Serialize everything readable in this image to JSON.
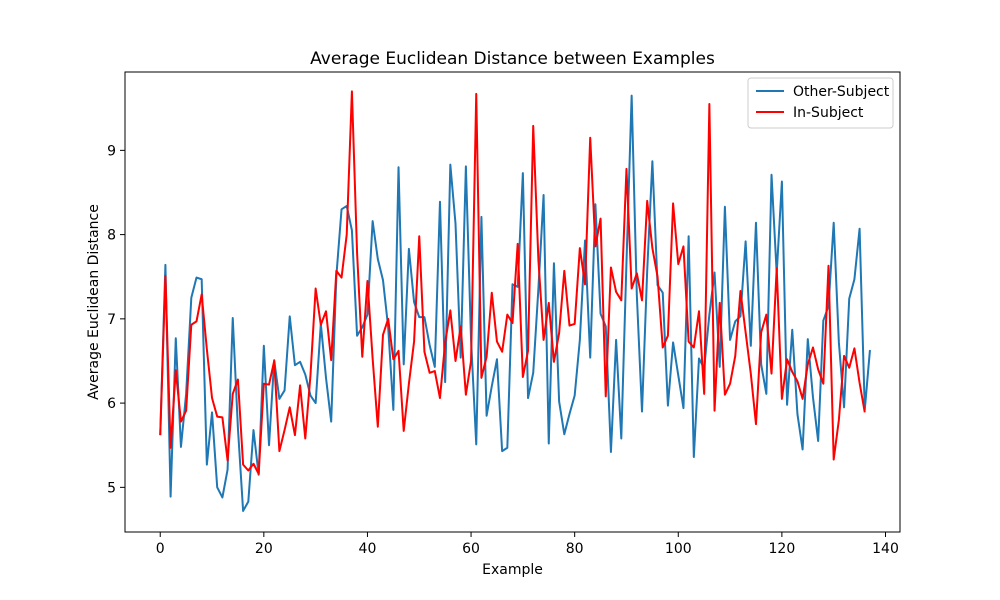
{
  "chart_data": {
    "type": "line",
    "title": "Average Euclidean Distance between Examples",
    "xlabel": "Example",
    "ylabel": "Average Euclidean Distance",
    "xlim": [
      -6.8,
      142.8
    ],
    "ylim": [
      4.47,
      9.93
    ],
    "xticks": [
      0,
      20,
      40,
      60,
      80,
      100,
      120,
      140
    ],
    "yticks": [
      5,
      6,
      7,
      8,
      9
    ],
    "grid": false,
    "legend_position": "top-right",
    "series": [
      {
        "name": "Other-Subject",
        "color": "#1f77b4",
        "values": [
          5.62,
          7.64,
          4.89,
          6.77,
          5.48,
          6.11,
          7.25,
          7.49,
          7.47,
          5.27,
          5.89,
          5.0,
          4.88,
          5.21,
          7.01,
          5.7,
          4.72,
          4.83,
          5.68,
          5.15,
          6.68,
          5.5,
          6.51,
          6.05,
          6.15,
          7.03,
          6.45,
          6.49,
          6.34,
          6.09,
          6.0,
          6.94,
          6.3,
          5.78,
          7.51,
          8.3,
          8.34,
          8.05,
          6.8,
          6.9,
          7.05,
          8.16,
          7.71,
          7.46,
          6.9,
          5.92,
          8.8,
          6.46,
          7.83,
          7.2,
          7.02,
          7.02,
          6.69,
          6.43,
          8.39,
          6.25,
          8.83,
          8.13,
          6.54,
          8.81,
          6.75,
          5.51,
          8.21,
          5.85,
          6.2,
          6.52,
          5.43,
          5.47,
          7.41,
          7.38,
          8.73,
          6.06,
          6.36,
          7.36,
          8.47,
          5.52,
          7.66,
          6.02,
          5.63,
          5.87,
          6.09,
          6.75,
          7.93,
          6.54,
          8.36,
          7.06,
          6.91,
          5.42,
          6.75,
          5.58,
          7.67,
          9.65,
          7.28,
          5.9,
          7.57,
          8.87,
          7.4,
          7.31,
          5.97,
          6.72,
          6.33,
          5.94,
          7.98,
          5.36,
          6.53,
          6.41,
          7.05,
          7.55,
          6.43,
          8.33,
          6.75,
          6.97,
          7.03,
          7.92,
          6.68,
          8.14,
          6.46,
          6.11,
          8.71,
          7.54,
          8.63,
          5.98,
          6.87,
          5.87,
          5.45,
          6.76,
          6.07,
          5.55,
          6.98,
          7.15,
          8.14,
          6.72,
          5.95,
          7.24,
          7.47,
          8.07,
          5.92,
          6.63
        ]
      },
      {
        "name": "In-Subject",
        "color": "#ff0000",
        "values": [
          5.62,
          7.51,
          5.47,
          6.39,
          5.78,
          5.91,
          6.93,
          6.97,
          7.29,
          6.64,
          6.06,
          5.84,
          5.83,
          5.32,
          6.11,
          6.28,
          5.27,
          5.2,
          5.28,
          5.16,
          6.23,
          6.22,
          6.5,
          5.43,
          5.68,
          5.95,
          5.62,
          6.21,
          5.58,
          6.33,
          7.36,
          6.93,
          7.09,
          6.51,
          7.57,
          7.49,
          8.0,
          9.7,
          7.78,
          6.55,
          7.45,
          6.53,
          5.72,
          6.81,
          7.0,
          6.52,
          6.62,
          5.67,
          6.23,
          6.73,
          7.98,
          6.61,
          6.36,
          6.38,
          6.06,
          6.72,
          7.1,
          6.5,
          6.91,
          6.1,
          6.5,
          9.67,
          6.3,
          6.55,
          7.31,
          6.73,
          6.61,
          7.05,
          6.95,
          7.89,
          6.31,
          6.62,
          9.29,
          7.7,
          6.75,
          7.19,
          6.49,
          6.83,
          7.57,
          6.92,
          6.94,
          7.84,
          7.41,
          9.15,
          7.86,
          8.19,
          6.08,
          7.61,
          7.32,
          7.22,
          8.78,
          7.36,
          7.54,
          7.22,
          8.4,
          7.84,
          7.5,
          6.66,
          6.8,
          8.37,
          7.65,
          7.86,
          6.73,
          6.66,
          7.09,
          6.11,
          9.55,
          5.91,
          7.19,
          6.1,
          6.23,
          6.56,
          7.33,
          6.84,
          6.35,
          5.75,
          6.84,
          7.05,
          6.35,
          7.6,
          6.05,
          6.52,
          6.37,
          6.26,
          6.05,
          6.46,
          6.66,
          6.4,
          6.23,
          7.63,
          5.33,
          5.8,
          6.56,
          6.42,
          6.65,
          6.24,
          5.89
        ]
      }
    ]
  }
}
